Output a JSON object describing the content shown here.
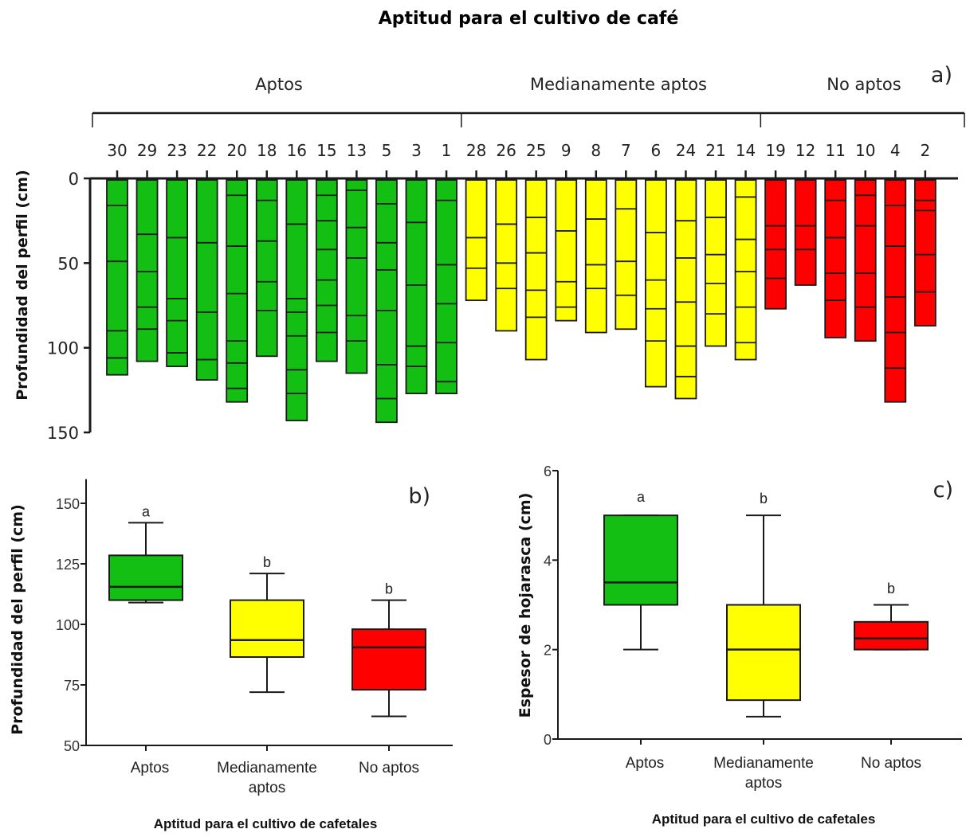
{
  "figure_title": "Aptitud para el cultivo de café",
  "colors": {
    "Aptos": "#12bf12",
    "Medianamente aptos": "#ffff00",
    "No aptos": "#ff0000",
    "stroke": "#1a1a1a"
  },
  "chart_data": [
    {
      "panel": "a)",
      "type": "bar",
      "subtype": "stacked soil-horizon profile columns",
      "title": "",
      "ylabel": "Profundidad del perfil (cm)",
      "ylim": [
        0,
        150
      ],
      "y_inverted": true,
      "yticks": [
        0,
        50,
        100,
        150
      ],
      "groups": [
        {
          "name": "Aptos",
          "profiles": [
            "30",
            "29",
            "23",
            "22",
            "20",
            "18",
            "16",
            "15",
            "13",
            "5",
            "3",
            "1"
          ]
        },
        {
          "name": "Medianamente aptos",
          "profiles": [
            "28",
            "26",
            "25",
            "9",
            "8",
            "7",
            "6",
            "24",
            "21",
            "14"
          ]
        },
        {
          "name": "No aptos",
          "profiles": [
            "19",
            "12",
            "11",
            "10",
            "4",
            "2"
          ]
        }
      ],
      "profiles": [
        {
          "id": "30",
          "group": "Aptos",
          "horizon_boundaries": [
            16,
            49,
            90,
            106
          ],
          "depth": 116
        },
        {
          "id": "29",
          "group": "Aptos",
          "horizon_boundaries": [
            33,
            55,
            76,
            89
          ],
          "depth": 108
        },
        {
          "id": "23",
          "group": "Aptos",
          "horizon_boundaries": [
            35,
            71,
            84,
            103
          ],
          "depth": 111
        },
        {
          "id": "22",
          "group": "Aptos",
          "horizon_boundaries": [
            38,
            79,
            107
          ],
          "depth": 119
        },
        {
          "id": "20",
          "group": "Aptos",
          "horizon_boundaries": [
            10,
            40,
            68,
            96,
            109,
            124
          ],
          "depth": 132
        },
        {
          "id": "18",
          "group": "Aptos",
          "horizon_boundaries": [
            13,
            37,
            61,
            78
          ],
          "depth": 105
        },
        {
          "id": "16",
          "group": "Aptos",
          "horizon_boundaries": [
            27,
            71,
            79,
            93,
            113,
            127
          ],
          "depth": 143
        },
        {
          "id": "15",
          "group": "Aptos",
          "horizon_boundaries": [
            10,
            25,
            42,
            60,
            75,
            91
          ],
          "depth": 108
        },
        {
          "id": "13",
          "group": "Aptos",
          "horizon_boundaries": [
            7,
            29,
            47,
            81,
            96
          ],
          "depth": 115
        },
        {
          "id": "5",
          "group": "Aptos",
          "horizon_boundaries": [
            15,
            38,
            54,
            78,
            110,
            130
          ],
          "depth": 144
        },
        {
          "id": "3",
          "group": "Aptos",
          "horizon_boundaries": [
            26,
            63,
            99,
            111
          ],
          "depth": 127
        },
        {
          "id": "1",
          "group": "Aptos",
          "horizon_boundaries": [
            13,
            51,
            74,
            97,
            120
          ],
          "depth": 127
        },
        {
          "id": "28",
          "group": "Medianamente aptos",
          "horizon_boundaries": [
            35,
            53
          ],
          "depth": 72
        },
        {
          "id": "26",
          "group": "Medianamente aptos",
          "horizon_boundaries": [
            27,
            50,
            65
          ],
          "depth": 90
        },
        {
          "id": "25",
          "group": "Medianamente aptos",
          "horizon_boundaries": [
            23,
            44,
            66,
            82
          ],
          "depth": 107
        },
        {
          "id": "9",
          "group": "Medianamente aptos",
          "horizon_boundaries": [
            31,
            61,
            76
          ],
          "depth": 84
        },
        {
          "id": "8",
          "group": "Medianamente aptos",
          "horizon_boundaries": [
            24,
            51,
            65
          ],
          "depth": 91
        },
        {
          "id": "7",
          "group": "Medianamente aptos",
          "horizon_boundaries": [
            18,
            49,
            69
          ],
          "depth": 89
        },
        {
          "id": "6",
          "group": "Medianamente aptos",
          "horizon_boundaries": [
            32,
            60,
            77,
            96
          ],
          "depth": 123
        },
        {
          "id": "24",
          "group": "Medianamente aptos",
          "horizon_boundaries": [
            25,
            47,
            73,
            99,
            117
          ],
          "depth": 130
        },
        {
          "id": "21",
          "group": "Medianamente aptos",
          "horizon_boundaries": [
            23,
            45,
            62,
            80
          ],
          "depth": 99
        },
        {
          "id": "14",
          "group": "Medianamente aptos",
          "horizon_boundaries": [
            11,
            36,
            55,
            76,
            97
          ],
          "depth": 107
        },
        {
          "id": "19",
          "group": "No aptos",
          "horizon_boundaries": [
            28,
            42,
            59
          ],
          "depth": 77
        },
        {
          "id": "12",
          "group": "No aptos",
          "horizon_boundaries": [
            28,
            42
          ],
          "depth": 63
        },
        {
          "id": "11",
          "group": "No aptos",
          "horizon_boundaries": [
            13,
            35,
            56,
            72
          ],
          "depth": 94
        },
        {
          "id": "10",
          "group": "No aptos",
          "horizon_boundaries": [
            10,
            28,
            56,
            76
          ],
          "depth": 96
        },
        {
          "id": "4",
          "group": "No aptos",
          "horizon_boundaries": [
            16,
            40,
            70,
            91,
            112
          ],
          "depth": 132
        },
        {
          "id": "2",
          "group": "No aptos",
          "horizon_boundaries": [
            13,
            19,
            45,
            67
          ],
          "depth": 87
        }
      ]
    },
    {
      "panel": "b)",
      "type": "box",
      "title": "",
      "xlabel": "Aptitud para el cultivo de cafetales",
      "ylabel": "Profundidad del perfil (cm)",
      "ylim": [
        50,
        160
      ],
      "yticks": [
        50,
        75,
        100,
        125,
        150
      ],
      "categories": [
        "Aptos",
        "Medianamente aptos",
        "No aptos"
      ],
      "category_lines": [
        [
          "Aptos"
        ],
        [
          "Medianamente",
          "aptos"
        ],
        [
          "No aptos"
        ]
      ],
      "boxes": [
        {
          "min": 109,
          "q1": 110,
          "median": 115.5,
          "q3": 128.5,
          "max": 142,
          "letter": "a"
        },
        {
          "min": 72,
          "q1": 86.5,
          "median": 93.5,
          "q3": 110,
          "max": 121,
          "letter": "b"
        },
        {
          "min": 62,
          "q1": 73,
          "median": 90.5,
          "q3": 98,
          "max": 110,
          "letter": "b"
        }
      ]
    },
    {
      "panel": "c)",
      "type": "box",
      "title": "",
      "xlabel": "Aptitud para el cultivo de cafetales",
      "ylabel": "Espesor de hojarasca (cm)",
      "ylim": [
        0,
        6
      ],
      "yticks": [
        0,
        2,
        4,
        6
      ],
      "categories": [
        "Aptos",
        "Medianamente aptos",
        "No aptos"
      ],
      "category_lines": [
        [
          "Aptos"
        ],
        [
          "Medianamente",
          "aptos"
        ],
        [
          "No aptos"
        ]
      ],
      "boxes": [
        {
          "min": 2,
          "q1": 3,
          "median": 3.5,
          "q3": 5,
          "max": 5,
          "letter": "a"
        },
        {
          "min": 0.5,
          "q1": 0.87,
          "median": 2,
          "q3": 3,
          "max": 5,
          "letter": "b"
        },
        {
          "min": 2,
          "q1": 2,
          "median": 2.25,
          "q3": 2.62,
          "max": 3,
          "letter": "b"
        }
      ]
    }
  ]
}
